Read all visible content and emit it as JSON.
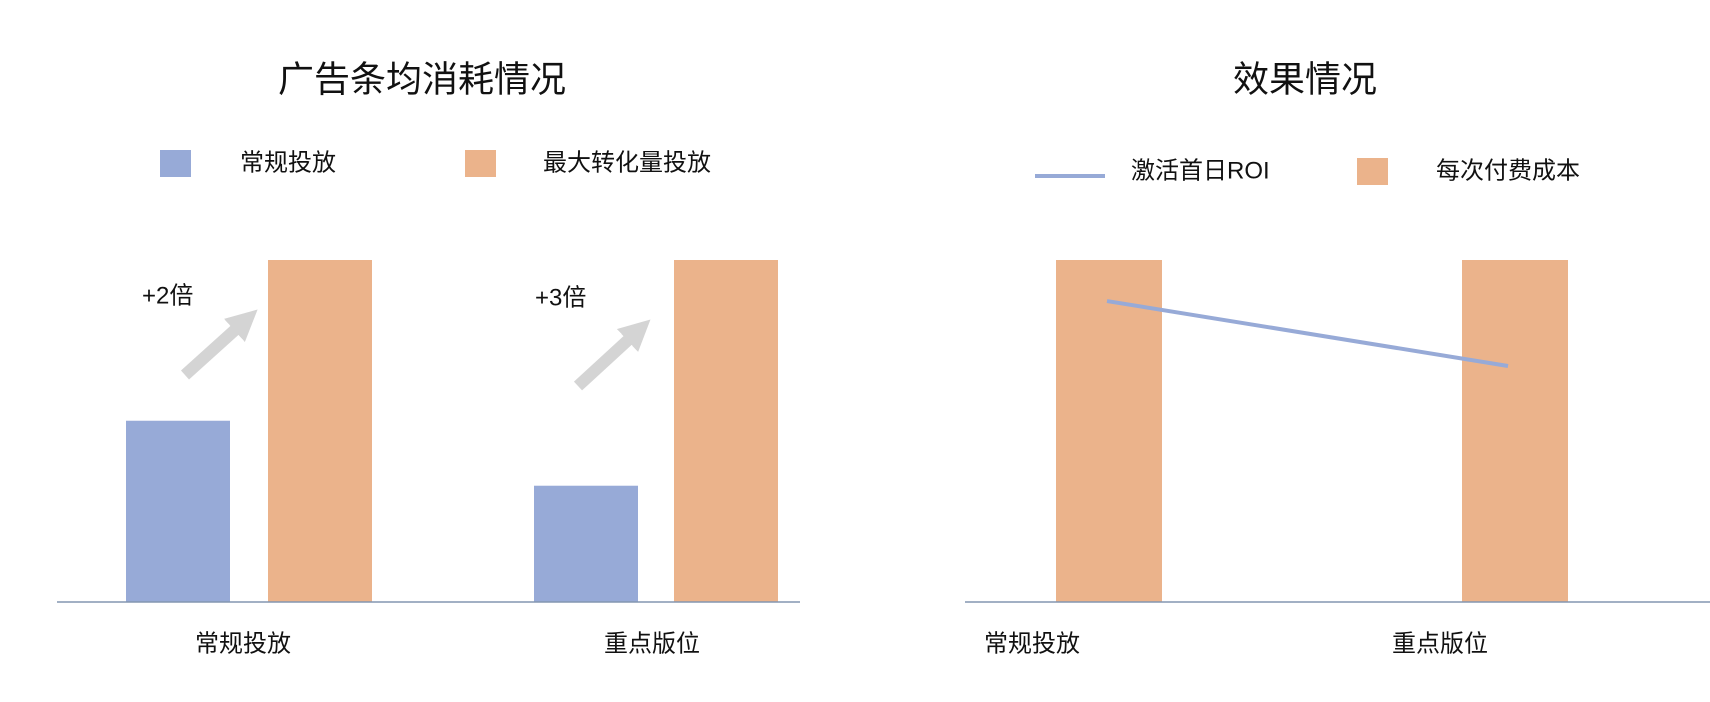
{
  "chart_data": [
    {
      "type": "bar",
      "title": "广告条均消耗情况",
      "categories": [
        "常规投放",
        "重点版位"
      ],
      "series": [
        {
          "name": "常规投放",
          "color": "#97aad7",
          "values": [
            53,
            34
          ]
        },
        {
          "name": "最大转化量投放",
          "color": "#ebb38b",
          "values": [
            100,
            100
          ]
        }
      ],
      "annotations": [
        "+2倍",
        "+3倍"
      ],
      "ylim": [
        0,
        100
      ]
    },
    {
      "type": "combo",
      "title": "效果情况",
      "categories": [
        "常规投放",
        "重点版位"
      ],
      "series": [
        {
          "name": "激活首日ROI",
          "type": "line",
          "color": "#97aad7",
          "values": [
            88,
            69
          ]
        },
        {
          "name": "每次付费成本",
          "type": "bar",
          "color": "#ebb38b",
          "values": [
            100,
            100
          ]
        }
      ],
      "ylim": [
        0,
        100
      ]
    }
  ]
}
